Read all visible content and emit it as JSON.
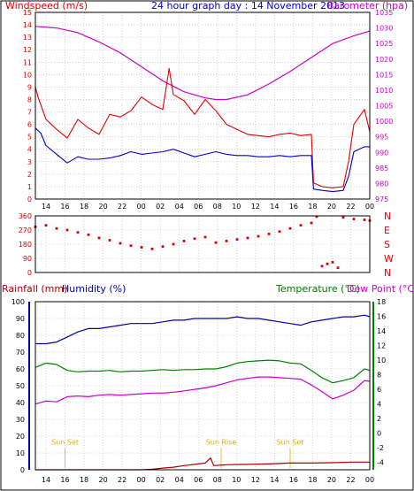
{
  "header": {
    "left": "Windspeed (m/s)",
    "center": "24 hour graph day : 14 November 2013",
    "right": "Barometer (hpa)"
  },
  "footer": {
    "rainfall": "Rainfall (mm)",
    "humidity": "Humidity (%)",
    "temperature": "Temperature (°C)",
    "dewpoint": "Dew Point (°C)"
  },
  "colors": {
    "wind_gust": "#e00000",
    "wind_avg": "#0000cc",
    "barometer": "#cc00cc",
    "direction": "#e00000",
    "rain": "#aa0000",
    "humidity": "#0000aa",
    "temperature": "#008000",
    "dewpoint": "#cc00cc",
    "sun": "#e0b000",
    "grid": "#b8b8b8"
  },
  "chart_data": [
    {
      "type": "line",
      "panel": "wind",
      "x_tick_labels": [
        "14",
        "16",
        "18",
        "20",
        "22",
        "00",
        "02",
        "04",
        "06",
        "08",
        "10",
        "12",
        "14",
        "16",
        "18",
        "20",
        "22",
        "00"
      ],
      "y_left_ticks": [
        0,
        1,
        2,
        3,
        4,
        5,
        6,
        7,
        8,
        9,
        10,
        11,
        12,
        13,
        14,
        15
      ],
      "y_right_ticks": [
        975,
        980,
        985,
        990,
        995,
        1000,
        1005,
        1010,
        1015,
        1020,
        1025,
        1030,
        1035
      ],
      "ylim_left": [
        0,
        15
      ],
      "ylim_right": [
        975,
        1035
      ],
      "series": [
        {
          "axis": "left",
          "points": [
            [
              0,
              9
            ],
            [
              0.25,
              8.2
            ],
            [
              0.5,
              7.6
            ],
            [
              1,
              6.4
            ],
            [
              2,
              5.6
            ],
            [
              3,
              4.9
            ],
            [
              4,
              6.4
            ],
            [
              5,
              5.7
            ],
            [
              6,
              5.2
            ],
            [
              7,
              6.8
            ],
            [
              8,
              6.6
            ],
            [
              9,
              7.1
            ],
            [
              10,
              8.2
            ],
            [
              11,
              7.6
            ],
            [
              12,
              7.2
            ],
            [
              12.6,
              10.5
            ],
            [
              13,
              8.4
            ],
            [
              14,
              7.9
            ],
            [
              15,
              6.8
            ],
            [
              16,
              8.0
            ],
            [
              17,
              7.1
            ],
            [
              18,
              6.0
            ],
            [
              19,
              5.6
            ],
            [
              20,
              5.2
            ],
            [
              21,
              5.1
            ],
            [
              22,
              5.0
            ],
            [
              23,
              5.2
            ],
            [
              24,
              5.3
            ],
            [
              25,
              5.1
            ],
            [
              26,
              5.2
            ],
            [
              26.2,
              1.3
            ],
            [
              27,
              1.0
            ],
            [
              28,
              0.9
            ],
            [
              29,
              1.0
            ],
            [
              29.5,
              3.0
            ],
            [
              30,
              6.0
            ],
            [
              31,
              7.2
            ],
            [
              31.5,
              5.4
            ]
          ]
        },
        {
          "axis": "left",
          "points": [
            [
              0,
              5.7
            ],
            [
              0.5,
              5.3
            ],
            [
              1,
              4.3
            ],
            [
              2,
              3.6
            ],
            [
              3,
              2.9
            ],
            [
              4,
              3.4
            ],
            [
              5,
              3.2
            ],
            [
              6,
              3.2
            ],
            [
              7,
              3.3
            ],
            [
              8,
              3.5
            ],
            [
              9,
              3.8
            ],
            [
              10,
              3.6
            ],
            [
              11,
              3.7
            ],
            [
              12,
              3.8
            ],
            [
              13,
              4.0
            ],
            [
              14,
              3.7
            ],
            [
              15,
              3.4
            ],
            [
              16,
              3.6
            ],
            [
              17,
              3.8
            ],
            [
              18,
              3.6
            ],
            [
              19,
              3.5
            ],
            [
              20,
              3.5
            ],
            [
              21,
              3.4
            ],
            [
              22,
              3.4
            ],
            [
              23,
              3.5
            ],
            [
              24,
              3.4
            ],
            [
              25,
              3.5
            ],
            [
              26,
              3.5
            ],
            [
              26.2,
              0.8
            ],
            [
              27,
              0.7
            ],
            [
              28,
              0.6
            ],
            [
              29,
              0.7
            ],
            [
              29.5,
              1.8
            ],
            [
              30,
              3.8
            ],
            [
              31,
              4.2
            ],
            [
              31.5,
              4.2
            ]
          ]
        },
        {
          "axis": "right",
          "points": [
            [
              0,
              1030.5
            ],
            [
              2,
              1030.0
            ],
            [
              4,
              1028.5
            ],
            [
              6,
              1025.5
            ],
            [
              8,
              1022.0
            ],
            [
              10,
              1017.5
            ],
            [
              12,
              1013.0
            ],
            [
              14,
              1009.5
            ],
            [
              16,
              1007.5
            ],
            [
              17,
              1007.0
            ],
            [
              18,
              1007.0
            ],
            [
              20,
              1008.5
            ],
            [
              22,
              1012.0
            ],
            [
              24,
              1016.0
            ],
            [
              26,
              1020.5
            ],
            [
              28,
              1025.0
            ],
            [
              30,
              1027.5
            ],
            [
              31.5,
              1029.0
            ]
          ]
        }
      ]
    },
    {
      "type": "scatter",
      "panel": "direction",
      "y_left_ticks": [
        0,
        90,
        180,
        270,
        360
      ],
      "y_right_labels": [
        "N",
        "W",
        "S",
        "E",
        "N"
      ],
      "ylim": [
        0,
        360
      ],
      "points": [
        [
          0,
          290
        ],
        [
          1,
          300
        ],
        [
          2,
          280
        ],
        [
          3,
          270
        ],
        [
          4,
          255
        ],
        [
          5,
          240
        ],
        [
          6,
          220
        ],
        [
          7,
          205
        ],
        [
          8,
          185
        ],
        [
          9,
          170
        ],
        [
          10,
          160
        ],
        [
          11,
          150
        ],
        [
          12,
          165
        ],
        [
          13,
          180
        ],
        [
          14,
          200
        ],
        [
          15,
          215
        ],
        [
          16,
          225
        ],
        [
          17,
          190
        ],
        [
          18,
          200
        ],
        [
          19,
          210
        ],
        [
          20,
          220
        ],
        [
          21,
          230
        ],
        [
          22,
          245
        ],
        [
          23,
          260
        ],
        [
          24,
          280
        ],
        [
          25,
          300
        ],
        [
          26,
          315
        ],
        [
          26.5,
          355
        ],
        [
          27,
          40
        ],
        [
          27.5,
          55
        ],
        [
          28,
          65
        ],
        [
          28.5,
          30
        ],
        [
          29,
          350
        ],
        [
          30,
          340
        ],
        [
          31,
          335
        ],
        [
          31.5,
          330
        ]
      ]
    },
    {
      "type": "line",
      "panel": "climate",
      "y_left_ticks": [
        0,
        10,
        20,
        30,
        40,
        50,
        60,
        70,
        80,
        90,
        100
      ],
      "y_right_ticks": [
        -4,
        -2,
        0,
        2,
        4,
        6,
        8,
        10,
        12,
        14,
        16,
        18
      ],
      "ylim_left": [
        0,
        100
      ],
      "ylim_right": [
        -5,
        18
      ],
      "annotations": [
        {
          "x": 2.8,
          "label": "Sun Set"
        },
        {
          "x": 17.5,
          "label": "Sun Rise"
        },
        {
          "x": 24.0,
          "label": "Sun Set"
        }
      ],
      "series": [
        {
          "axis": "left",
          "points": [
            [
              0,
              0
            ],
            [
              10,
              0
            ],
            [
              11,
              0.3
            ],
            [
              12,
              1
            ],
            [
              13,
              1.5
            ],
            [
              14,
              2.5
            ],
            [
              15,
              3.2
            ],
            [
              16,
              4
            ],
            [
              16.5,
              7
            ],
            [
              16.8,
              2.5
            ],
            [
              18,
              3
            ],
            [
              20,
              3.2
            ],
            [
              22,
              3.5
            ],
            [
              24,
              4
            ],
            [
              26,
              4
            ],
            [
              28,
              4.2
            ],
            [
              30,
              4.6
            ],
            [
              31.5,
              4.6
            ]
          ]
        },
        {
          "axis": "left",
          "points": [
            [
              0,
              75
            ],
            [
              1,
              75
            ],
            [
              2,
              76
            ],
            [
              3,
              79
            ],
            [
              4,
              82
            ],
            [
              5,
              84
            ],
            [
              6,
              84
            ],
            [
              7,
              85
            ],
            [
              8,
              86
            ],
            [
              9,
              87
            ],
            [
              10,
              87
            ],
            [
              11,
              87
            ],
            [
              12,
              88
            ],
            [
              13,
              89
            ],
            [
              14,
              89
            ],
            [
              15,
              90
            ],
            [
              16,
              90
            ],
            [
              17,
              90
            ],
            [
              18,
              90
            ],
            [
              19,
              91
            ],
            [
              20,
              90
            ],
            [
              21,
              90
            ],
            [
              22,
              89
            ],
            [
              23,
              88
            ],
            [
              24,
              87
            ],
            [
              25,
              86
            ],
            [
              26,
              88
            ],
            [
              27,
              89
            ],
            [
              28,
              90
            ],
            [
              29,
              91
            ],
            [
              30,
              91
            ],
            [
              31,
              92
            ],
            [
              31.5,
              91
            ]
          ]
        },
        {
          "axis": "right",
          "points": [
            [
              0,
              9.0
            ],
            [
              1,
              9.6
            ],
            [
              2,
              9.4
            ],
            [
              3,
              8.6
            ],
            [
              4,
              8.4
            ],
            [
              5,
              8.5
            ],
            [
              6,
              8.5
            ],
            [
              7,
              8.6
            ],
            [
              8,
              8.4
            ],
            [
              9,
              8.5
            ],
            [
              10,
              8.5
            ],
            [
              11,
              8.6
            ],
            [
              12,
              8.7
            ],
            [
              13,
              8.6
            ],
            [
              14,
              8.7
            ],
            [
              15,
              8.7
            ],
            [
              16,
              8.8
            ],
            [
              17,
              8.8
            ],
            [
              18,
              9.1
            ],
            [
              19,
              9.6
            ],
            [
              20,
              9.8
            ],
            [
              21,
              9.9
            ],
            [
              22,
              10.0
            ],
            [
              23,
              9.9
            ],
            [
              24,
              9.6
            ],
            [
              25,
              9.5
            ],
            [
              26,
              8.6
            ],
            [
              27,
              7.6
            ],
            [
              28,
              6.9
            ],
            [
              29,
              7.2
            ],
            [
              30,
              7.6
            ],
            [
              31,
              8.8
            ],
            [
              31.5,
              8.6
            ]
          ]
        },
        {
          "axis": "right",
          "points": [
            [
              0,
              4.0
            ],
            [
              1,
              4.4
            ],
            [
              2,
              4.3
            ],
            [
              3,
              5.0
            ],
            [
              4,
              5.1
            ],
            [
              5,
              5.0
            ],
            [
              6,
              5.2
            ],
            [
              7,
              5.3
            ],
            [
              8,
              5.2
            ],
            [
              9,
              5.3
            ],
            [
              10,
              5.4
            ],
            [
              11,
              5.5
            ],
            [
              12,
              5.5
            ],
            [
              13,
              5.6
            ],
            [
              14,
              5.8
            ],
            [
              15,
              6.0
            ],
            [
              16,
              6.2
            ],
            [
              17,
              6.5
            ],
            [
              18,
              6.9
            ],
            [
              19,
              7.3
            ],
            [
              20,
              7.5
            ],
            [
              21,
              7.7
            ],
            [
              22,
              7.7
            ],
            [
              23,
              7.6
            ],
            [
              24,
              7.5
            ],
            [
              25,
              7.4
            ],
            [
              26,
              6.6
            ],
            [
              27,
              5.7
            ],
            [
              28,
              4.7
            ],
            [
              29,
              5.2
            ],
            [
              30,
              5.9
            ],
            [
              31,
              7.2
            ],
            [
              31.5,
              7.1
            ]
          ]
        }
      ]
    }
  ]
}
